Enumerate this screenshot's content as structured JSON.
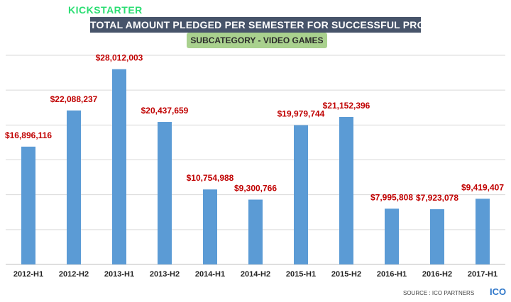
{
  "brand": {
    "name": "KICKSTARTER",
    "accent": "#2bde73"
  },
  "chart_data": {
    "type": "bar",
    "title": "TOTAL AMOUNT PLEDGED PER SEMESTER FOR SUCCESSFUL PROJECTS",
    "subtitle": "SUBCATEGORY - VIDEO GAMES",
    "categories": [
      "2012-H1",
      "2012-H2",
      "2013-H1",
      "2013-H2",
      "2014-H1",
      "2014-H2",
      "2015-H1",
      "2015-H2",
      "2016-H1",
      "2016-H2",
      "2017-H1"
    ],
    "values": [
      16896116,
      22088237,
      28012003,
      20437659,
      10754988,
      9300766,
      19979744,
      21152396,
      7995808,
      7923078,
      9419407
    ],
    "data_labels": [
      "$16,896,116",
      "$22,088,237",
      "$28,012,003",
      "$20,437,659",
      "$10,754,988",
      "$9,300,766",
      "$19,979,744",
      "$21,152,396",
      "$7,995,808",
      "$7,923,078",
      "$9,419,407"
    ],
    "ylim": [
      0,
      30000000
    ],
    "grid": true,
    "bar_color": "#5b9bd5",
    "label_color": "#c00000"
  },
  "source": "SOURCE : ICO PARTNERS",
  "logo_text": "ICO"
}
